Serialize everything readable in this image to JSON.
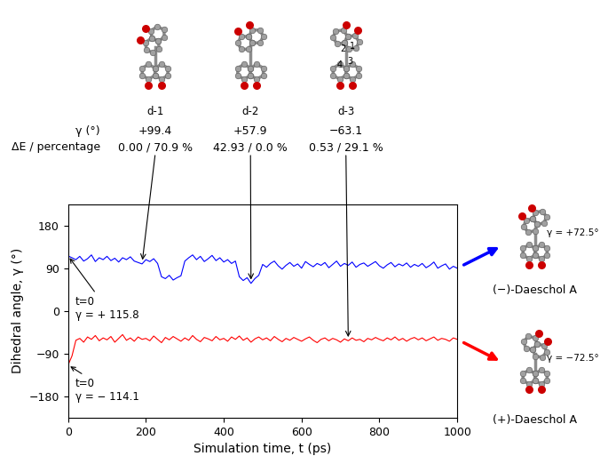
{
  "chart_data": {
    "type": "line",
    "xlabel": "Simulation time, t (ps)",
    "ylabel": "Dihedral angle, γ (°)",
    "xlim": [
      0,
      1000
    ],
    "ylim": [
      -225,
      225
    ],
    "xticks": [
      0,
      200,
      400,
      600,
      800,
      1000
    ],
    "yticks": [
      {
        "value": -180,
        "label": "−180"
      },
      {
        "value": -90,
        "label": "−90"
      },
      0,
      90,
      180
    ],
    "grid": false,
    "x": [
      0,
      10,
      20,
      30,
      40,
      50,
      60,
      70,
      80,
      90,
      100,
      110,
      120,
      130,
      140,
      150,
      160,
      170,
      180,
      190,
      200,
      210,
      220,
      230,
      240,
      250,
      260,
      270,
      280,
      290,
      300,
      310,
      320,
      330,
      340,
      350,
      360,
      370,
      380,
      390,
      400,
      410,
      420,
      430,
      440,
      450,
      460,
      470,
      480,
      490,
      500,
      510,
      520,
      530,
      540,
      550,
      560,
      570,
      580,
      590,
      600,
      610,
      620,
      630,
      640,
      650,
      660,
      670,
      680,
      690,
      700,
      710,
      720,
      730,
      740,
      750,
      760,
      770,
      780,
      790,
      800,
      810,
      820,
      830,
      840,
      850,
      860,
      870,
      880,
      890,
      900,
      910,
      920,
      930,
      940,
      950,
      960,
      970,
      980,
      990,
      1000
    ],
    "series": [
      {
        "color": "#0000ff",
        "values": [
          115.8,
          112,
          108,
          115,
          105,
          110,
          118,
          104,
          112,
          108,
          115,
          106,
          111,
          103,
          112,
          108,
          114,
          105,
          102,
          99,
          108,
          104,
          110,
          100,
          72,
          68,
          75,
          65,
          70,
          74,
          105,
          112,
          118,
          108,
          115,
          104,
          110,
          117,
          106,
          112,
          103,
          108,
          100,
          105,
          72,
          64,
          70,
          58,
          68,
          75,
          98,
          92,
          100,
          105,
          95,
          88,
          96,
          102,
          94,
          99,
          90,
          104,
          98,
          93,
          100,
          96,
          102,
          91,
          98,
          105,
          94,
          100,
          96,
          103,
          92,
          98,
          101,
          94,
          99,
          104,
          95,
          90,
          97,
          102,
          93,
          99,
          95,
          101,
          92,
          98,
          94,
          100,
          91,
          96,
          103,
          90,
          95,
          99,
          88,
          94,
          90
        ],
        "start": {
          "t": 0,
          "gamma": 115.8,
          "texts": [
            "t=0",
            "γ = + 115.8"
          ]
        },
        "structure": {
          "label": "(−)-Daeschol A",
          "gamma_label": "γ = +72.5°"
        }
      },
      {
        "color": "#ff0000",
        "values": [
          -114.1,
          -95,
          -62,
          -58,
          -66,
          -55,
          -60,
          -52,
          -63,
          -57,
          -61,
          -54,
          -66,
          -58,
          -50,
          -62,
          -57,
          -64,
          -55,
          -60,
          -58,
          -63,
          -53,
          -60,
          -67,
          -56,
          -61,
          -54,
          -59,
          -64,
          -57,
          -62,
          -52,
          -60,
          -65,
          -56,
          -59,
          -63,
          -54,
          -61,
          -58,
          -64,
          -55,
          -60,
          -53,
          -62,
          -57,
          -66,
          -59,
          -55,
          -61,
          -57,
          -63,
          -54,
          -60,
          -65,
          -58,
          -62,
          -56,
          -60,
          -64,
          -59,
          -55,
          -62,
          -67,
          -60,
          -57,
          -63,
          -58,
          -61,
          -66,
          -59,
          -63,
          -57,
          -62,
          -60,
          -65,
          -58,
          -61,
          -56,
          -60,
          -63,
          -57,
          -61,
          -55,
          -62,
          -58,
          -64,
          -59,
          -56,
          -61,
          -57,
          -63,
          -59,
          -55,
          -62,
          -58,
          -60,
          -64,
          -57,
          -60
        ],
        "start": {
          "t": 0,
          "gamma": -114.1,
          "texts": [
            "t=0",
            "γ = − 114.1"
          ]
        },
        "structure": {
          "label": "(+)-Daeschol A",
          "gamma_label": "γ = −72.5°"
        }
      }
    ],
    "conformers": {
      "row_labels": [
        "γ (°)",
        "ΔE / percentage"
      ],
      "items": [
        {
          "label": "d-1",
          "gamma": {
            "value": 99.4,
            "label": "+99.4"
          },
          "energy_percentage": "0.00 / 70.9 %",
          "t": 190
        },
        {
          "label": "d-2",
          "gamma": {
            "value": 57.9,
            "label": "+57.9"
          },
          "energy_percentage": "42.93 / 0.0 %",
          "t": 470
        },
        {
          "label": "d-3",
          "gamma": {
            "value": -63.1,
            "label": "−63.1"
          },
          "energy_percentage": "0.53 / 29.1 %",
          "t": 720,
          "atom_labels": [
            "1",
            "2",
            "3",
            "4"
          ]
        }
      ]
    }
  }
}
